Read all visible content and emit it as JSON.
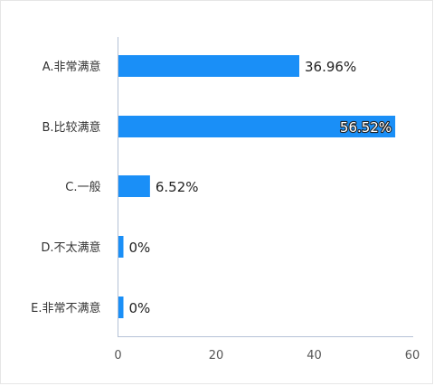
{
  "colors": {
    "bar": "#1a8ff7",
    "axis": "#b5c1d6"
  },
  "chart_data": {
    "type": "bar",
    "orientation": "horizontal",
    "categories": [
      "A.非常满意",
      "B.比较满意",
      "C.一般",
      "D.不太满意",
      "E.非常不满意"
    ],
    "values": [
      36.96,
      56.52,
      6.52,
      0,
      0
    ],
    "value_labels": [
      "36.96%",
      "56.52%",
      "6.52%",
      "0%",
      "0%"
    ],
    "xlim": [
      0,
      60
    ],
    "xticks": [
      "0",
      "20",
      "40",
      "60"
    ],
    "grid": false,
    "legend": "none"
  }
}
